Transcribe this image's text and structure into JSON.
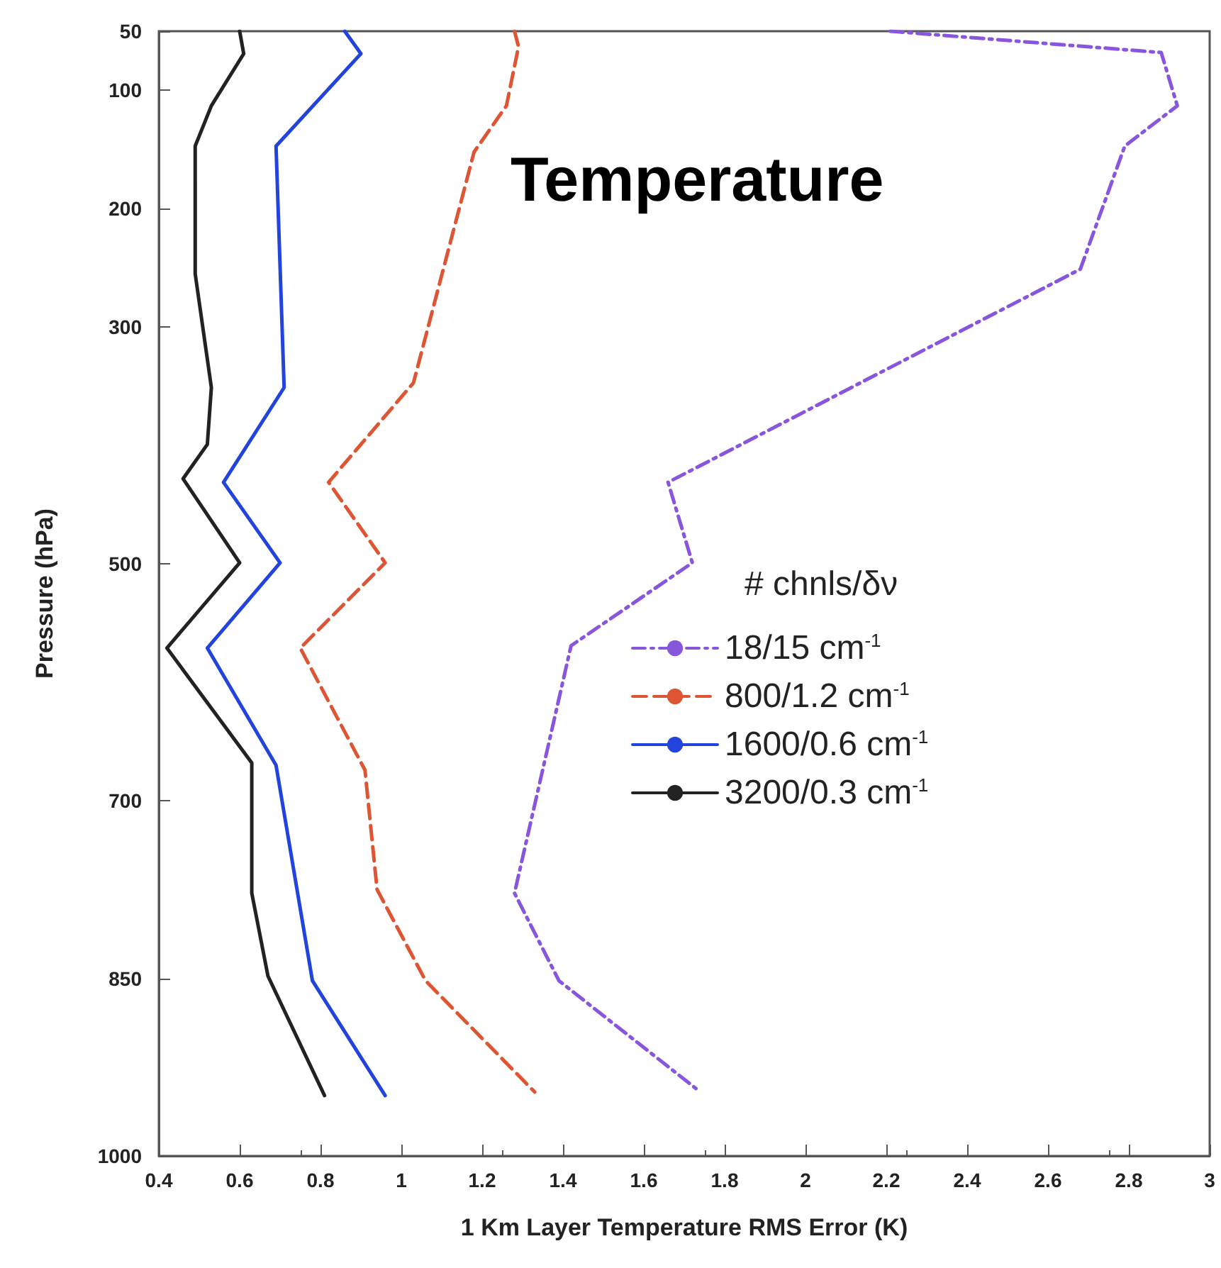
{
  "chart_data": {
    "type": "line",
    "title": "Temperature",
    "xlabel": "1 Km Layer Temperature RMS Error (K)",
    "ylabel": "Pressure (hPa)",
    "legend_title": "# chnls/δν",
    "xlim": [
      0.4,
      3
    ],
    "xticks": [
      0.4,
      0.6,
      0.8,
      1,
      1.2,
      1.4,
      1.6,
      1.8,
      2,
      2.2,
      2.4,
      2.6,
      2.8,
      3
    ],
    "ylim": [
      1000,
      50
    ],
    "yticks": [
      50,
      100,
      200,
      300,
      500,
      700,
      850,
      1000
    ],
    "grid": false,
    "legend": "right",
    "marker": "none",
    "series": [
      {
        "name": "18/15 cm$^{-1}$",
        "color": "#8855dd",
        "line_style": "dashdot",
        "x": [
          2.21,
          2.88,
          2.92,
          2.79,
          2.68,
          1.66,
          1.72,
          1.42,
          1.28,
          1.39,
          1.74
        ],
        "values": [
          50,
          68,
          113,
          147,
          251,
          431,
          499,
          569,
          778,
          852,
          946
        ]
      },
      {
        "name": "800/1.2 cm$^{-1}$",
        "color": "#dd5533",
        "line_style": "dashed",
        "x": [
          1.28,
          1.29,
          1.26,
          1.18,
          1.03,
          0.82,
          0.96,
          0.75,
          0.91,
          0.94,
          1.06,
          1.33
        ],
        "values": [
          50,
          63,
          113,
          152,
          347,
          431,
          499,
          571,
          674,
          775,
          852,
          946
        ]
      },
      {
        "name": "1600/0.6 cm$^{-1}$",
        "color": "#2244dd",
        "line_style": "solid",
        "x": [
          0.86,
          0.9,
          0.69,
          0.71,
          0.56,
          0.7,
          0.52,
          0.69,
          0.78,
          0.96
        ],
        "values": [
          50,
          69,
          147,
          351,
          431,
          499,
          571,
          670,
          852,
          949
        ]
      },
      {
        "name": "3200/0.3 cm$^{-1}$",
        "color": "#222222",
        "line_style": "solid",
        "x": [
          0.6,
          0.61,
          0.53,
          0.49,
          0.49,
          0.53,
          0.52,
          0.46,
          0.6,
          0.42,
          0.63,
          0.63,
          0.67,
          0.81
        ],
        "values": [
          50,
          69,
          113,
          147,
          255,
          351,
          399,
          428,
          499,
          571,
          668,
          778,
          848,
          949
        ]
      }
    ]
  }
}
